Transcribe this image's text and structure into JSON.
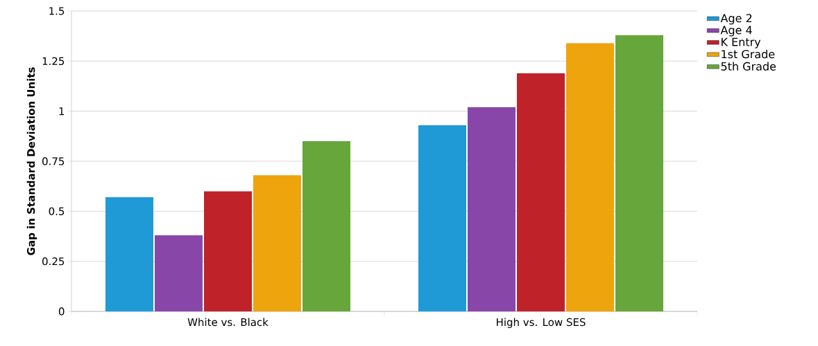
{
  "chart_data": {
    "type": "bar",
    "ylabel": "Gap in Standard Deviation Units",
    "categories": [
      "White vs. Black",
      "High vs. Low SES"
    ],
    "series": [
      {
        "name": "Age 2",
        "color": "#1f9ad6",
        "values": [
          0.57,
          0.93
        ]
      },
      {
        "name": "Age 4",
        "color": "#8847a8",
        "values": [
          0.38,
          1.02
        ]
      },
      {
        "name": "K Entry",
        "color": "#c0222a",
        "values": [
          0.6,
          1.19
        ]
      },
      {
        "name": "1st Grade",
        "color": "#eea40d",
        "values": [
          0.68,
          1.34
        ]
      },
      {
        "name": "5th Grade",
        "color": "#66a63a",
        "values": [
          0.85,
          1.38
        ]
      }
    ],
    "ylim": [
      0,
      1.5
    ],
    "yticks": [
      0,
      0.25,
      0.5,
      0.75,
      1,
      1.25,
      1.5
    ],
    "grid": "y",
    "legend": "right"
  }
}
